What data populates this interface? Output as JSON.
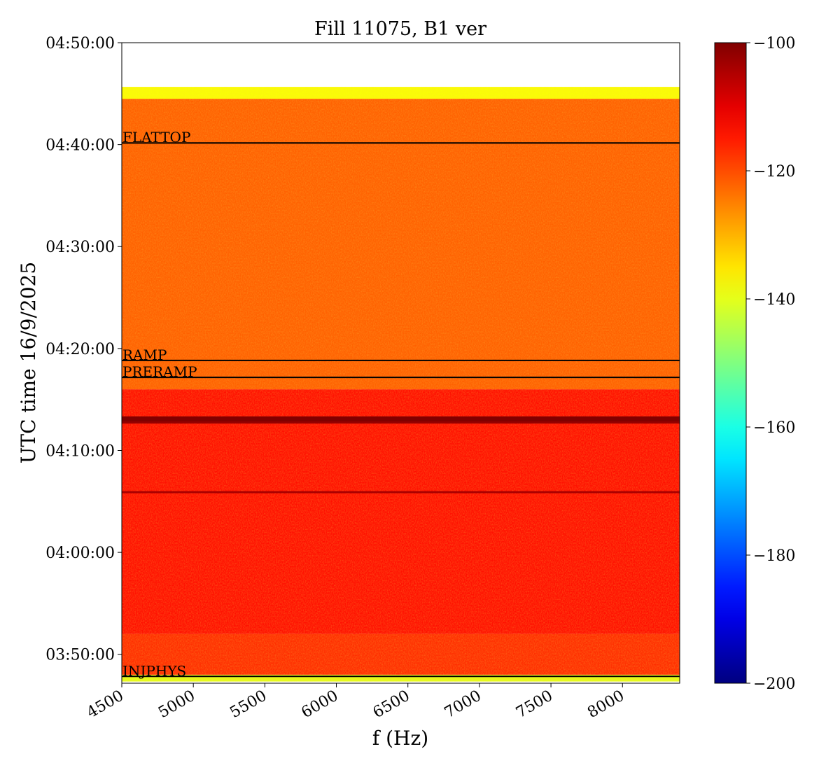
{
  "chart_data": {
    "type": "heatmap",
    "title": "Fill 11075, B1 ver",
    "xlabel": "f (Hz)",
    "ylabel": "UTC time 16/9/2025",
    "xlim": [
      4500,
      8400
    ],
    "ylim": [
      "03:47:10",
      "04:50:00"
    ],
    "x_ticks": [
      4500,
      5000,
      5500,
      6000,
      6500,
      7000,
      7500,
      8000
    ],
    "y_ticks": [
      "03:50:00",
      "04:00:00",
      "04:10:00",
      "04:20:00",
      "04:30:00",
      "04:40:00",
      "04:50:00"
    ],
    "data_time_range": [
      "03:47:20",
      "04:45:40"
    ],
    "colormap": "jet",
    "colorbar": {
      "min": -200,
      "max": -100,
      "ticks": [
        -100,
        -120,
        -140,
        -160,
        -180,
        -200
      ]
    },
    "intensity_bands": [
      {
        "from": "03:47:20",
        "to": "03:48:00",
        "level": -140
      },
      {
        "from": "03:48:00",
        "to": "03:52:00",
        "level": -117
      },
      {
        "from": "03:52:00",
        "to": "04:16:00",
        "level": -114
      },
      {
        "from": "04:16:00",
        "to": "04:44:30",
        "level": -122
      },
      {
        "from": "04:44:30",
        "to": "04:45:40",
        "level": -138
      }
    ],
    "strong_lines": [
      {
        "time": "04:13:00",
        "level": -100
      },
      {
        "time": "04:12:30",
        "level": -102
      },
      {
        "time": "04:05:40",
        "level": -104
      }
    ],
    "phases": [
      {
        "label": "FLATTOP",
        "time": "04:40:10"
      },
      {
        "label": "RAMP",
        "time": "04:18:50"
      },
      {
        "label": "PRERAMP",
        "time": "04:17:10"
      },
      {
        "label": "INJPHYS",
        "time": "03:47:50"
      }
    ],
    "grid": false,
    "legend": "none"
  }
}
